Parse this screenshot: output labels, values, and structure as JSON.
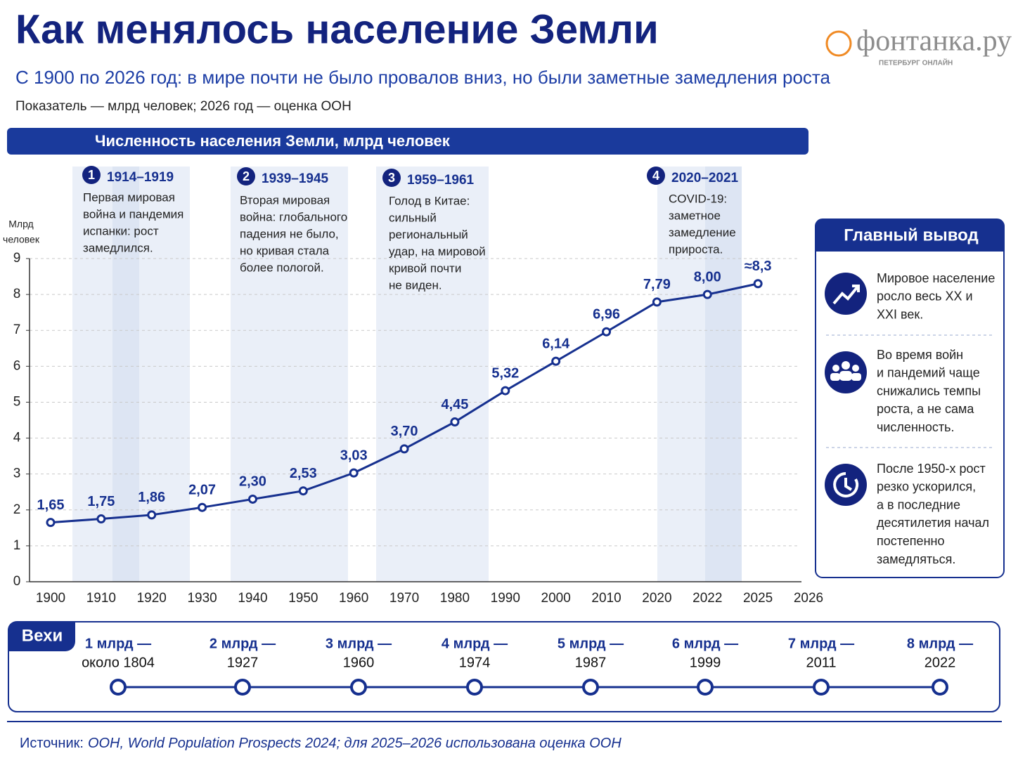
{
  "header": {
    "title": "Как менялось население Земли",
    "subtitle": "С 1900 по 2026 год: в мире почти не было провалов вниз, но были заметные замедления роста",
    "note": "Показатель — млрд человек; 2026 год — оценка ООН"
  },
  "logo": {
    "name": "фонтанка.ру",
    "tagline": "ПЕТЕРБУРГ ОНЛАЙН"
  },
  "chart_data": {
    "type": "line",
    "title": "Численность населения Земли, млрд человек",
    "ylabel": [
      "Млрд",
      "человек"
    ],
    "categories": [
      "1900",
      "1910",
      "1920",
      "1930",
      "1940",
      "1950",
      "1960",
      "1970",
      "1980",
      "1990",
      "2000",
      "2010",
      "2020",
      "2022",
      "2025",
      "2026"
    ],
    "values": [
      1.65,
      1.75,
      1.86,
      2.07,
      2.3,
      2.53,
      3.03,
      3.7,
      4.45,
      5.32,
      6.14,
      6.96,
      7.79,
      8.0,
      8.3,
      null
    ],
    "value_labels": [
      "1,65",
      "1,75",
      "1,86",
      "2,07",
      "2,30",
      "2,53",
      "3,03",
      "3,70",
      "4,45",
      "5,32",
      "6,14",
      "6,96",
      "7,79",
      "8,00",
      "≈8,3",
      null
    ],
    "color": "#16308f",
    "ylim": [
      0,
      9
    ],
    "yticks": [
      0,
      1,
      2,
      3,
      4,
      5,
      6,
      7,
      8,
      9
    ],
    "grid": true,
    "annotations": [
      {
        "number": 1,
        "period": "1914–1919",
        "lines": [
          "Первая мировая",
          "война и пандемия",
          "испанки: рост",
          "замедлился."
        ]
      },
      {
        "number": 2,
        "period": "1939–1945",
        "lines": [
          "Вторая мировая",
          "война: глобального",
          "падения не было,",
          "но кривая стала",
          "более пологой."
        ]
      },
      {
        "number": 3,
        "period": "1959–1961",
        "lines": [
          "Голод в Китае:",
          "сильный",
          "региональный",
          "удар, на мировой",
          "кривой почти",
          "не виден."
        ]
      },
      {
        "number": 4,
        "period": "2020–2021",
        "lines": [
          "COVID-19:",
          "заметное",
          "замедление",
          "прироста."
        ]
      }
    ]
  },
  "conclusion": {
    "title": "Главный вывод",
    "items": [
      {
        "lines": [
          "Мировое население",
          "росло весь XX и",
          "XXI век."
        ]
      },
      {
        "lines": [
          "Во время войн",
          "и пандемий чаще",
          "снижались темпы",
          "роста, а не сама",
          "численность."
        ]
      },
      {
        "lines": [
          "После 1950-х рост",
          "резко ускорился,",
          "а в последние",
          "десятилетия начал",
          "постепенно",
          "замедляться."
        ]
      }
    ]
  },
  "milestones": {
    "title": "Вехи",
    "items": [
      {
        "label": "1 млрд —",
        "date": "около 1804"
      },
      {
        "label": "2 млрд —",
        "date": "1927"
      },
      {
        "label": "3 млрд —",
        "date": "1960"
      },
      {
        "label": "4 млрд —",
        "date": "1974"
      },
      {
        "label": "5 млрд —",
        "date": "1987"
      },
      {
        "label": "6 млрд —",
        "date": "1999"
      },
      {
        "label": "7 млрд —",
        "date": "2011"
      },
      {
        "label": "8 млрд —",
        "date": "2022"
      }
    ]
  },
  "source": {
    "label": "Источник:",
    "text": "ООН, World Population Prospects 2024; для 2025–2026 использована оценка ООН"
  }
}
